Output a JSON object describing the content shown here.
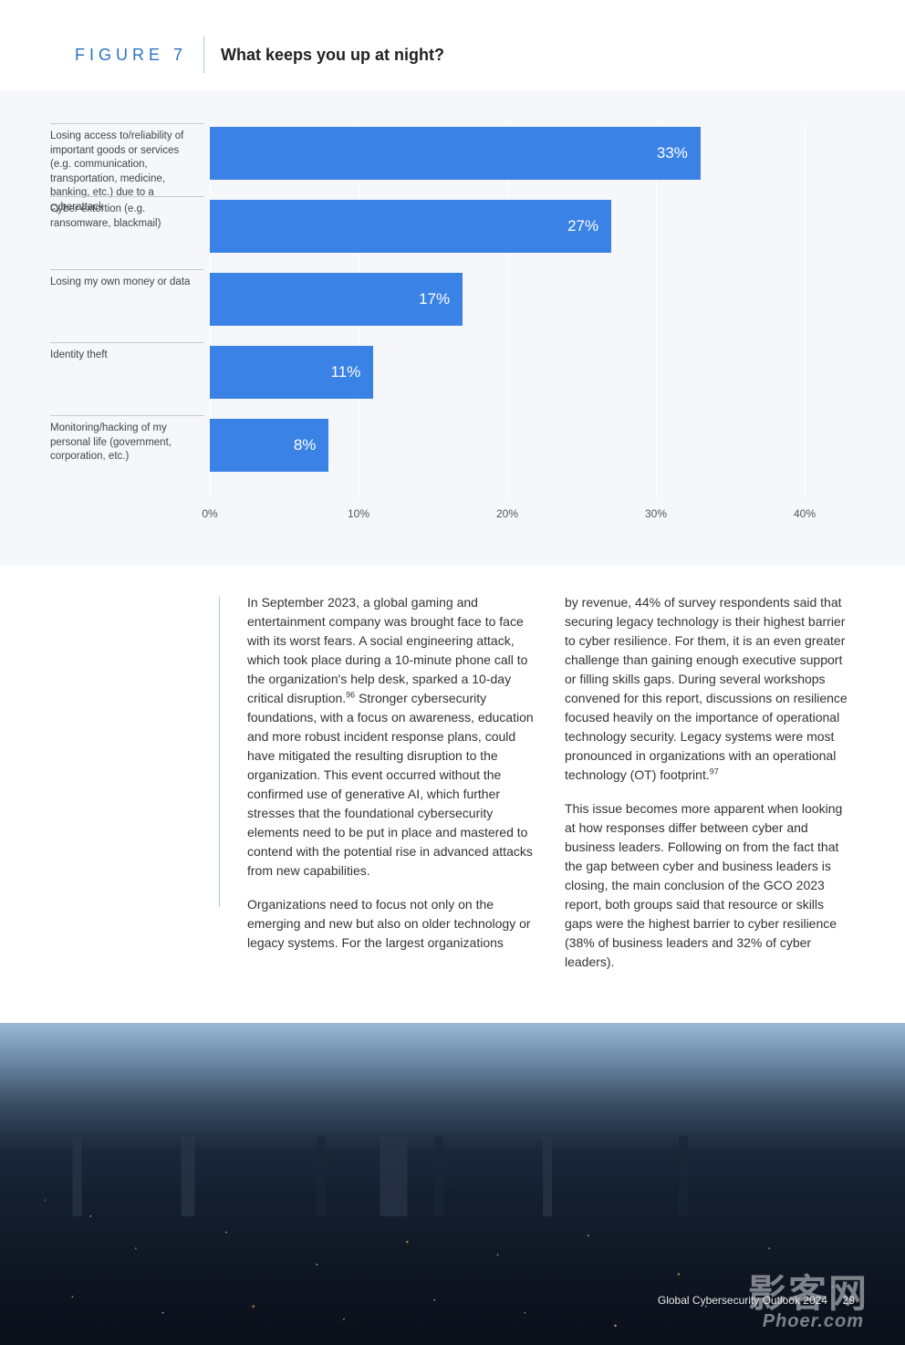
{
  "header": {
    "figure_label": "FIGURE 7",
    "title": "What keeps you up at night?"
  },
  "chart": {
    "type": "bar-horizontal",
    "xmax": 40,
    "xticks": [
      0,
      10,
      20,
      30,
      40
    ],
    "xtick_labels": [
      "0%",
      "10%",
      "20%",
      "30%",
      "40%"
    ],
    "bar_color": "#3b82e6",
    "value_text_color": "#ffffff",
    "background_color": "#f5f7fa",
    "gridline_color": "#ffffff",
    "label_fontsize": 11.5,
    "value_fontsize": 17,
    "bars": [
      {
        "label": "Losing access to/reliability of important goods or services (e.g. communication, transportation, medicine, banking, etc.) due to a cyberattack",
        "value": 33,
        "display": "33%"
      },
      {
        "label": "Cyber extortion (e.g. ransomware, blackmail)",
        "value": 27,
        "display": "27%"
      },
      {
        "label": "Losing my own money or data",
        "value": 17,
        "display": "17%"
      },
      {
        "label": "Identity theft",
        "value": 11,
        "display": "11%"
      },
      {
        "label": "Monitoring/hacking of my personal life (government, corporation, etc.)",
        "value": 8,
        "display": "8%"
      }
    ]
  },
  "body": {
    "col1_p1_a": "In September 2023, a global gaming and entertainment company was brought face to face with its worst fears. A social engineering attack, which took place during a 10-minute phone call to the organization's help desk, sparked a 10-day critical disruption.",
    "body_sup1": "96",
    "col1_p1_b": " Stronger cybersecurity foundations, with a focus on awareness, education and more robust incident response plans, could have mitigated the resulting disruption to the organization. This event occurred without the confirmed use of generative AI, which further stresses that the foundational cybersecurity elements need to be put in place and mastered to contend with the potential rise in advanced attacks from new capabilities.",
    "col1_p2": "Organizations need to focus not only on the emerging and new but also on older technology or legacy systems. For the largest organizations",
    "col2_p1_a": "by revenue, 44% of survey respondents said that securing legacy technology is their highest barrier to cyber resilience. For them, it is an even greater challenge than gaining enough executive support or filling skills gaps. During several workshops convened for this report, discussions on resilience focused heavily on the importance of operational technology security. Legacy systems were most pronounced in organizations with an operational technology (OT) footprint.",
    "body_sup2": "97",
    "col2_p2": "This issue becomes more apparent when looking at how responses differ between cyber and business leaders. Following on from the fact that the gap between cyber and business leaders is closing, the main conclusion of the GCO 2023 report, both groups said that resource or skills gaps were the highest barrier to cyber resilience (38% of business leaders and 32% of cyber leaders)."
  },
  "footer": {
    "text": "Global Cybersecurity Outlook 2024",
    "page": "29"
  },
  "watermark": {
    "main": "影客网",
    "sub": "Phoer.com"
  }
}
